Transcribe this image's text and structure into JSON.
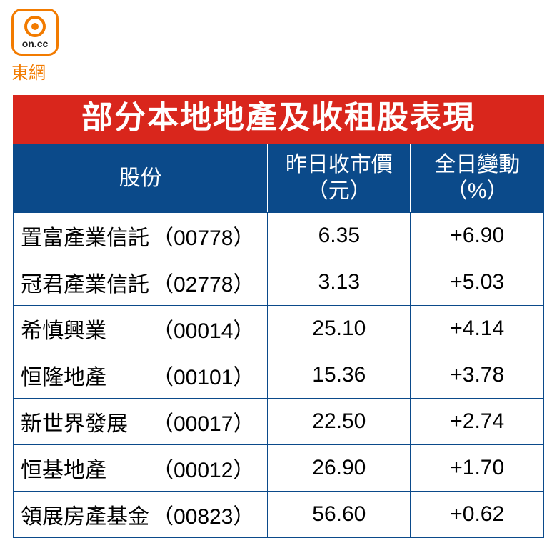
{
  "brand": {
    "logo_text": "on.cc",
    "label": "東網"
  },
  "title": "部分本地地產及收租股表現",
  "colors": {
    "title_bg": "#d9261c",
    "header_bg": "#0b4a8a",
    "border": "#0b4a8a",
    "brand": "#f27b00",
    "bg": "#ffffff",
    "text": "#000000",
    "header_text": "#ffffff"
  },
  "table": {
    "columns": [
      {
        "label_line1": "股份",
        "label_line2": ""
      },
      {
        "label_line1": "昨日收市價",
        "label_line2": "（元）"
      },
      {
        "label_line1": "全日變動",
        "label_line2": "（%）"
      }
    ],
    "rows": [
      {
        "name": "置富產業信託",
        "code": "（00778）",
        "price": "6.35",
        "change": "+6.90",
        "name_pad": ""
      },
      {
        "name": "冠君產業信託",
        "code": "（02778）",
        "price": "3.13",
        "change": "+5.03",
        "name_pad": ""
      },
      {
        "name": "希慎興業",
        "code": "（00014）",
        "price": "25.10",
        "change": "+4.14",
        "name_pad": "　　"
      },
      {
        "name": "恒隆地產",
        "code": "（00101）",
        "price": "15.36",
        "change": "+3.78",
        "name_pad": "　　"
      },
      {
        "name": "新世界發展",
        "code": "（00017）",
        "price": "22.50",
        "change": "+2.74",
        "name_pad": "　"
      },
      {
        "name": "恒基地產",
        "code": "（00012）",
        "price": "26.90",
        "change": "+1.70",
        "name_pad": "　　"
      },
      {
        "name": "領展房產基金",
        "code": "（00823）",
        "price": "56.60",
        "change": "+0.62",
        "name_pad": ""
      }
    ]
  },
  "fontsizes": {
    "title": 44,
    "header": 30,
    "body": 30,
    "brand_label": 24
  }
}
